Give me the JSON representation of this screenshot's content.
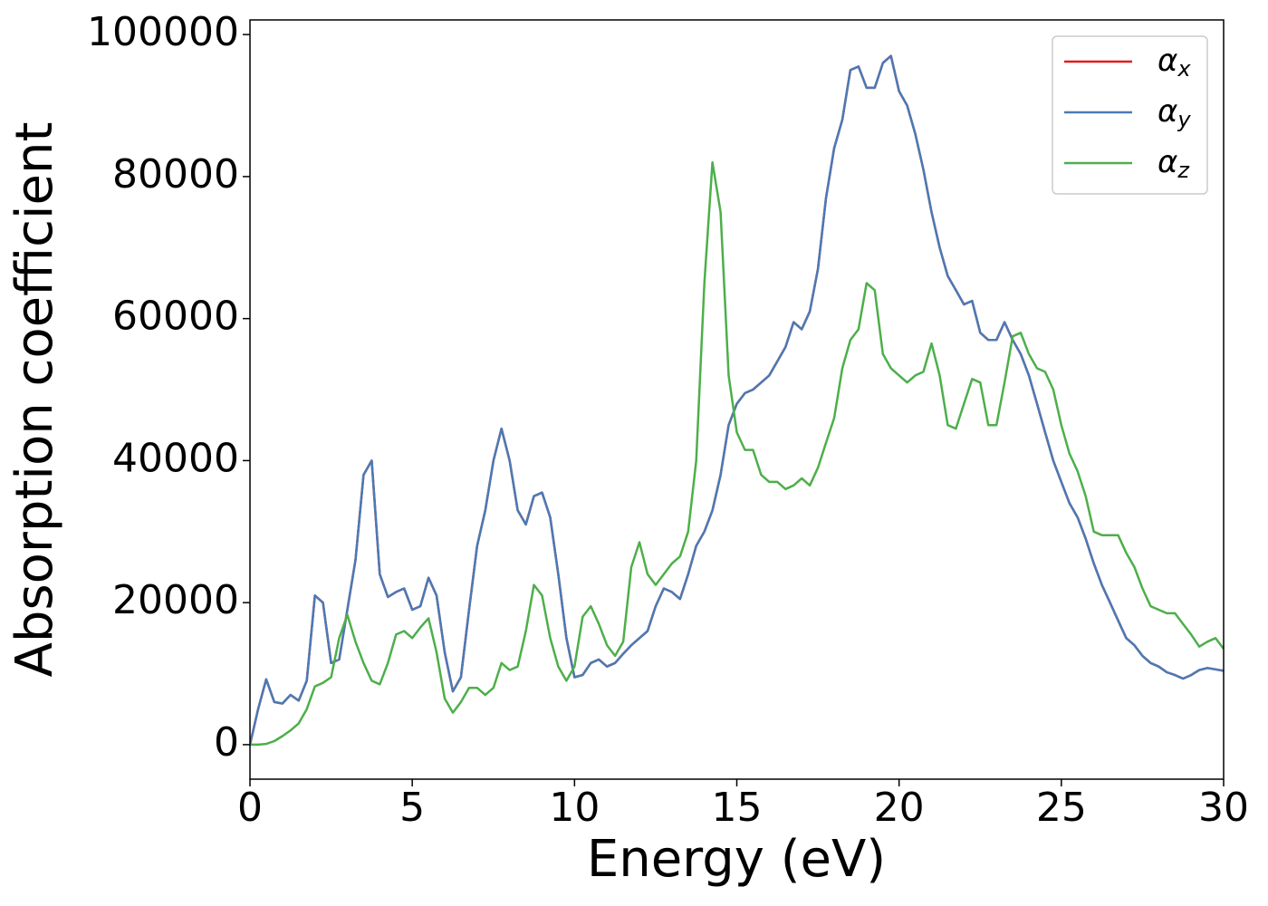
{
  "chart_data": {
    "type": "line",
    "xlabel": "Energy (eV)",
    "ylabel": "Absorption coefficient",
    "x": [
      0,
      0.25,
      0.5,
      0.75,
      1,
      1.25,
      1.5,
      1.75,
      2,
      2.25,
      2.5,
      2.75,
      3,
      3.25,
      3.5,
      3.75,
      4,
      4.25,
      4.5,
      4.75,
      5,
      5.25,
      5.5,
      5.75,
      6,
      6.25,
      6.5,
      6.75,
      7,
      7.25,
      7.5,
      7.75,
      8,
      8.25,
      8.5,
      8.75,
      9,
      9.25,
      9.5,
      9.75,
      10,
      10.25,
      10.5,
      10.75,
      11,
      11.25,
      11.5,
      11.75,
      12,
      12.25,
      12.5,
      12.75,
      13,
      13.25,
      13.5,
      13.75,
      14,
      14.25,
      14.5,
      14.75,
      15,
      15.25,
      15.5,
      15.75,
      16,
      16.25,
      16.5,
      16.75,
      17,
      17.25,
      17.5,
      17.75,
      18,
      18.25,
      18.5,
      18.75,
      19,
      19.25,
      19.5,
      19.75,
      20,
      20.25,
      20.5,
      20.75,
      21,
      21.25,
      21.5,
      21.75,
      22,
      22.25,
      22.5,
      22.75,
      23,
      23.25,
      23.5,
      23.75,
      24,
      24.25,
      24.5,
      24.75,
      25,
      25.25,
      25.5,
      25.75,
      26,
      26.25,
      26.5,
      26.75,
      27,
      27.25,
      27.5,
      27.75,
      28,
      28.25,
      28.5,
      28.75,
      29,
      29.25,
      29.5,
      29.75,
      30
    ],
    "series": [
      {
        "name": "αx",
        "color": "#e41a1c",
        "values": [
          0,
          5000,
          9200,
          6000,
          5800,
          7000,
          6200,
          9000,
          21000,
          20000,
          11500,
          12000,
          19000,
          26000,
          38000,
          40000,
          24000,
          20800,
          21500,
          22000,
          19000,
          19500,
          23500,
          21000,
          13000,
          7500,
          9500,
          19000,
          28000,
          33000,
          40000,
          44500,
          40000,
          33000,
          31000,
          35000,
          35500,
          32000,
          24000,
          15000,
          9500,
          9800,
          11500,
          12000,
          11000,
          11500,
          12800,
          14000,
          15000,
          16000,
          19500,
          22000,
          21500,
          20500,
          24000,
          28000,
          30000,
          33000,
          38000,
          45000,
          48000,
          49500,
          50000,
          51000,
          52000,
          54000,
          56000,
          59500,
          58500,
          61000,
          67000,
          77000,
          84000,
          88000,
          95000,
          95500,
          92500,
          92500,
          96000,
          97000,
          92000,
          90000,
          86000,
          81000,
          75000,
          70000,
          66000,
          64000,
          62000,
          62500,
          58000,
          57000,
          57000,
          59500,
          57000,
          55000,
          52000,
          48000,
          44000,
          40000,
          37000,
          34000,
          32000,
          29000,
          25500,
          22500,
          20000,
          17500,
          15000,
          14000,
          12500,
          11500,
          11000,
          10200,
          9800,
          9300,
          9800,
          10500,
          10800,
          10600,
          10400
        ]
      },
      {
        "name": "αy",
        "color": "#4a7ab5",
        "values": [
          0,
          5000,
          9200,
          6000,
          5800,
          7000,
          6200,
          9000,
          21000,
          20000,
          11500,
          12000,
          19000,
          26000,
          38000,
          40000,
          24000,
          20800,
          21500,
          22000,
          19000,
          19500,
          23500,
          21000,
          13000,
          7500,
          9500,
          19000,
          28000,
          33000,
          40000,
          44500,
          40000,
          33000,
          31000,
          35000,
          35500,
          32000,
          24000,
          15000,
          9500,
          9800,
          11500,
          12000,
          11000,
          11500,
          12800,
          14000,
          15000,
          16000,
          19500,
          22000,
          21500,
          20500,
          24000,
          28000,
          30000,
          33000,
          38000,
          45000,
          48000,
          49500,
          50000,
          51000,
          52000,
          54000,
          56000,
          59500,
          58500,
          61000,
          67000,
          77000,
          84000,
          88000,
          95000,
          95500,
          92500,
          92500,
          96000,
          97000,
          92000,
          90000,
          86000,
          81000,
          75000,
          70000,
          66000,
          64000,
          62000,
          62500,
          58000,
          57000,
          57000,
          59500,
          57000,
          55000,
          52000,
          48000,
          44000,
          40000,
          37000,
          34000,
          32000,
          29000,
          25500,
          22500,
          20000,
          17500,
          15000,
          14000,
          12500,
          11500,
          11000,
          10200,
          9800,
          9300,
          9800,
          10500,
          10800,
          10600,
          10400
        ]
      },
      {
        "name": "αz",
        "color": "#4daf4a",
        "values": [
          0,
          0,
          100,
          500,
          1200,
          2000,
          3000,
          5000,
          8200,
          8700,
          9500,
          15000,
          18300,
          14500,
          11500,
          9000,
          8500,
          11500,
          15500,
          16000,
          15000,
          16500,
          17800,
          13000,
          6500,
          4500,
          6000,
          8000,
          8000,
          7000,
          8000,
          11500,
          10500,
          11000,
          16000,
          22500,
          21000,
          15000,
          11000,
          9000,
          11000,
          18000,
          19500,
          17000,
          14000,
          12500,
          14500,
          25000,
          28500,
          24000,
          22500,
          24000,
          25500,
          26500,
          30000,
          40000,
          65000,
          82000,
          75000,
          52000,
          44000,
          41500,
          41500,
          38000,
          37000,
          37000,
          36000,
          36500,
          37500,
          36500,
          39000,
          42500,
          46000,
          53000,
          57000,
          58500,
          65000,
          64000,
          55000,
          53000,
          52000,
          51000,
          52000,
          52500,
          56500,
          52000,
          45000,
          44500,
          48000,
          51500,
          51000,
          45000,
          45000,
          51000,
          57500,
          58000,
          55000,
          53000,
          52500,
          50000,
          45000,
          41000,
          38500,
          35000,
          30000,
          29500,
          29500,
          29500,
          27000,
          25000,
          22000,
          19500,
          19000,
          18500,
          18500,
          17000,
          15500,
          13800,
          14500,
          15000,
          13500
        ]
      }
    ],
    "xlim": [
      0,
      30
    ],
    "xticks": [
      0,
      5,
      10,
      15,
      20,
      25,
      30
    ],
    "ylim": [
      -4860,
      102060
    ],
    "yticks": [
      0,
      20000,
      40000,
      60000,
      80000,
      100000
    ],
    "grid": false,
    "legend": "upper right"
  }
}
